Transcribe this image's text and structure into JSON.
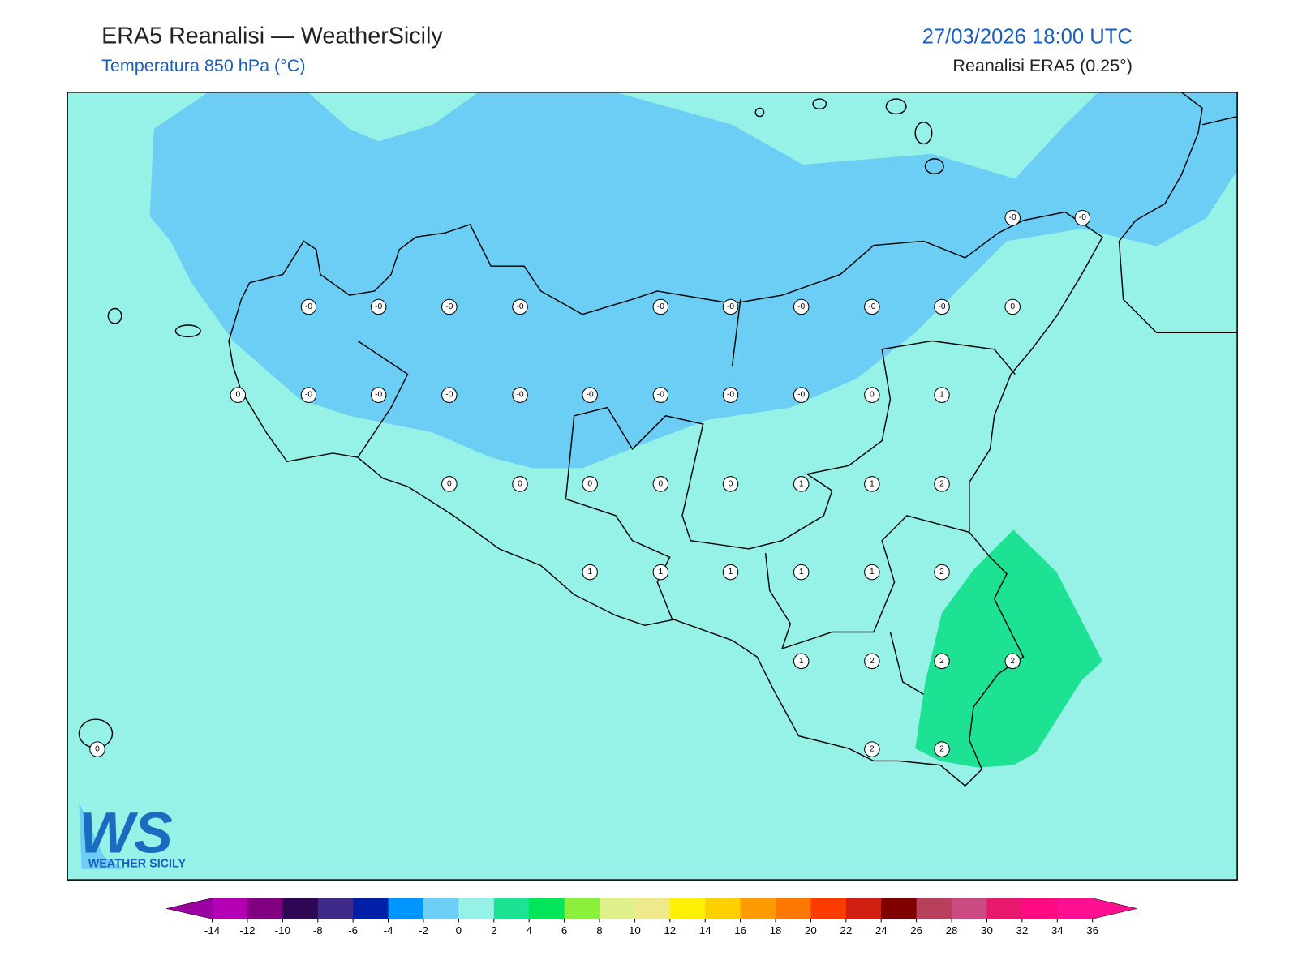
{
  "header": {
    "title": "ERA5 Reanalisi — WeatherSicily",
    "subtitle": "Temperatura 850 hPa (°C)",
    "datetime": "27/03/2026 18:00 UTC",
    "source": "Reanalisi ERA5 (0.25°)"
  },
  "points": [
    {
      "label": "-0"
    },
    {
      "label": "-0"
    },
    {
      "label": "-0"
    },
    {
      "label": "-0"
    },
    {
      "label": "-0"
    },
    {
      "label": "-0"
    },
    {
      "label": "-0"
    },
    {
      "label": "-0"
    },
    {
      "label": "-0"
    },
    {
      "label": "-0"
    },
    {
      "label": "-0"
    },
    {
      "label": "0"
    },
    {
      "label": "0"
    },
    {
      "label": "-0"
    },
    {
      "label": "-0"
    },
    {
      "label": "-0"
    },
    {
      "label": "-0"
    },
    {
      "label": "-0"
    },
    {
      "label": "-0"
    },
    {
      "label": "-0"
    },
    {
      "label": "-0"
    },
    {
      "label": "0"
    },
    {
      "label": "1"
    },
    {
      "label": "0"
    },
    {
      "label": "0"
    },
    {
      "label": "0"
    },
    {
      "label": "0"
    },
    {
      "label": "0"
    },
    {
      "label": "1"
    },
    {
      "label": "1"
    },
    {
      "label": "2"
    },
    {
      "label": "1"
    },
    {
      "label": "1"
    },
    {
      "label": "1"
    },
    {
      "label": "1"
    },
    {
      "label": "1"
    },
    {
      "label": "2"
    },
    {
      "label": "1"
    },
    {
      "label": "2"
    },
    {
      "label": "2"
    },
    {
      "label": "2"
    },
    {
      "label": "0"
    },
    {
      "label": "2"
    },
    {
      "label": "2"
    }
  ],
  "colorbar": {
    "ticks": [
      -14,
      -12,
      -10,
      -8,
      -6,
      -4,
      -2,
      0,
      2,
      4,
      6,
      8,
      10,
      12,
      14,
      16,
      18,
      20,
      22,
      24,
      26,
      28,
      30,
      32,
      34,
      36
    ],
    "colors": [
      "#b400b4",
      "#800080",
      "#2e0854",
      "#3f2a8a",
      "#0020a8",
      "#0096ff",
      "#6ccdf5",
      "#96f2e6",
      "#1de294",
      "#00e65a",
      "#8af03c",
      "#def08a",
      "#eee98a",
      "#fff000",
      "#ffd000",
      "#ff9a00",
      "#ff7800",
      "#ff3c00",
      "#d01e10",
      "#800000",
      "#b8405a",
      "#cc4a82",
      "#e8186e",
      "#ff0a80",
      "#ff1090"
    ],
    "under": "#9c00a0",
    "over": "#ff1090"
  },
  "logo": {
    "mark": "WS",
    "name": "WEATHER SICILY"
  }
}
